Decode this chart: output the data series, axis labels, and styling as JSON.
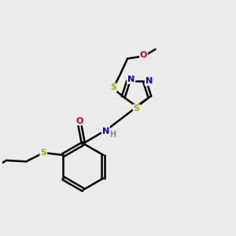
{
  "bg_color": "#ebebeb",
  "atom_colors": {
    "C": "#000000",
    "N": "#0000cc",
    "O": "#cc0000",
    "S": "#aaaa00",
    "H": "#888888"
  },
  "bond_color": "#000000",
  "bond_width": 1.8,
  "figsize": [
    3.0,
    3.0
  ],
  "dpi": 100,
  "xlim": [
    0,
    10
  ],
  "ylim": [
    0,
    10
  ]
}
